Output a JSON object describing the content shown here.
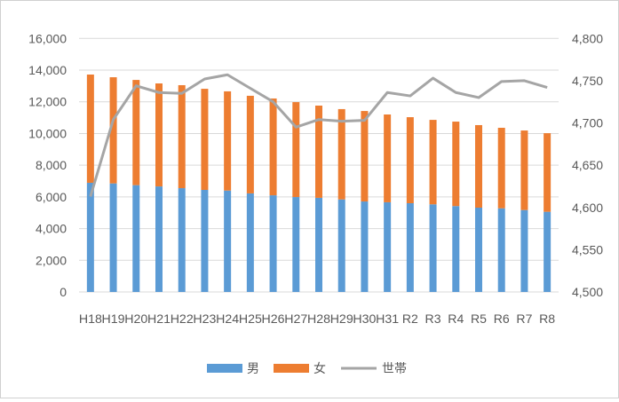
{
  "chart_data": {
    "type": "bar",
    "stacked": true,
    "categories": [
      "H18",
      "H19",
      "H20",
      "H21",
      "H22",
      "H23",
      "H24",
      "H25",
      "H26",
      "H27",
      "H28",
      "H29",
      "H30",
      "H31",
      "R2",
      "R3",
      "R4",
      "R5",
      "R6",
      "R7",
      "R8"
    ],
    "series": [
      {
        "name": "男",
        "type": "bar",
        "axis": "left",
        "color": "#5b9bd5",
        "values": [
          6890,
          6850,
          6740,
          6660,
          6550,
          6440,
          6400,
          6220,
          6100,
          5990,
          5940,
          5840,
          5710,
          5660,
          5600,
          5530,
          5420,
          5320,
          5280,
          5170,
          5060
        ]
      },
      {
        "name": "女",
        "type": "bar",
        "axis": "left",
        "color": "#ed7d31",
        "values": [
          6830,
          6700,
          6640,
          6500,
          6500,
          6380,
          6260,
          6160,
          6110,
          5990,
          5820,
          5700,
          5710,
          5540,
          5430,
          5330,
          5330,
          5210,
          5080,
          5020,
          4960
        ]
      },
      {
        "name": "世帯",
        "type": "line",
        "axis": "right",
        "color": "#a5a5a5",
        "values": [
          4613,
          4704,
          4744,
          4736,
          4735,
          4752,
          4757,
          4741,
          4725,
          4695,
          4704,
          4702,
          4703,
          4736,
          4732,
          4753,
          4736,
          4730,
          4749,
          4750,
          4742
        ]
      }
    ],
    "yleft": {
      "lim": [
        0,
        16000
      ],
      "ticks": [
        "0",
        "2,000",
        "4,000",
        "6,000",
        "8,000",
        "10,000",
        "12,000",
        "14,000",
        "16,000"
      ]
    },
    "yright": {
      "lim": [
        4500,
        4800
      ],
      "ticks": [
        "4,500",
        "4,550",
        "4,600",
        "4,650",
        "4,700",
        "4,750",
        "4,800"
      ]
    },
    "grid": true,
    "legend": "bottom"
  }
}
